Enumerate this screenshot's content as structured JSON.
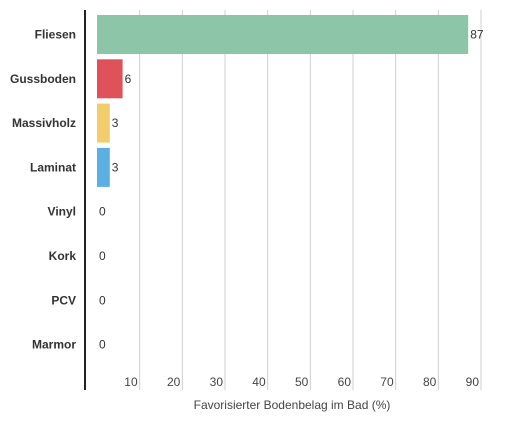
{
  "chart_data": {
    "type": "bar",
    "orientation": "horizontal",
    "categories": [
      "Fliesen",
      "Gussboden",
      "Massivholz",
      "Laminat",
      "Vinyl",
      "Kork",
      "PCV",
      "Marmor"
    ],
    "values": [
      87,
      6,
      3,
      3,
      0,
      0,
      0,
      0
    ],
    "value_labels": [
      "87",
      "6",
      "3",
      "3",
      "0",
      "0",
      "0",
      "0"
    ],
    "colors": [
      "#8cc5a7",
      "#e0525a",
      "#f2cd6b",
      "#5ab0e2",
      "#cccccc",
      "#cccccc",
      "#cccccc",
      "#cccccc"
    ],
    "xlabel": "Favorisierter Bodenbelag im Bad (%)",
    "xlim": [
      0,
      90
    ],
    "xticks": [
      "10",
      "20",
      "30",
      "40",
      "50",
      "60",
      "70",
      "80",
      "90"
    ],
    "grid": true
  }
}
